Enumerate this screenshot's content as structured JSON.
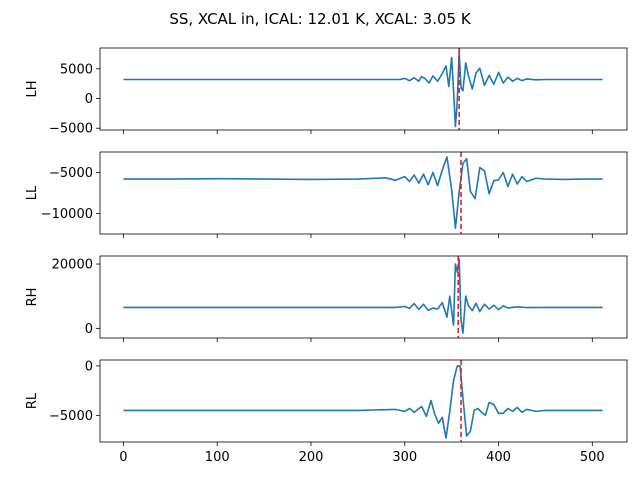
{
  "figure": {
    "title": "SS, XCAL in, ICAL: 12.01 K, XCAL: 3.05 K"
  },
  "chart_data": [
    {
      "type": "line",
      "ylabel": "LH",
      "xlim": [
        -25,
        537
      ],
      "ylim": [
        -5300,
        8500
      ],
      "yticks": [
        -5000,
        0,
        5000
      ],
      "xticks": [
        0,
        100,
        200,
        300,
        400,
        500
      ],
      "show_xtick_labels": false,
      "baseline": 3200,
      "marker_x": 358,
      "series": [
        {
          "color": "#1f77b4",
          "x": [
            0,
            295,
            300,
            305,
            310,
            315,
            318,
            322,
            326,
            330,
            335,
            340,
            344,
            347,
            350,
            352,
            354,
            356,
            358,
            360,
            362,
            365,
            368,
            372,
            376,
            380,
            385,
            390,
            395,
            400,
            405,
            410,
            415,
            420,
            425,
            430,
            440,
            450,
            511
          ],
          "y": [
            3200,
            3200,
            3400,
            3000,
            3500,
            2900,
            3700,
            3300,
            2600,
            3800,
            2900,
            4200,
            5500,
            2000,
            6900,
            1500,
            -4700,
            -500,
            7800,
            1800,
            1300,
            6000,
            3800,
            1600,
            4300,
            5100,
            2200,
            3900,
            2400,
            4400,
            2600,
            3600,
            2900,
            3400,
            3000,
            3300,
            3150,
            3200,
            3200
          ]
        }
      ]
    },
    {
      "type": "line",
      "ylabel": "LL",
      "xlim": [
        -25,
        537
      ],
      "ylim": [
        -12500,
        -2500
      ],
      "yticks": [
        -10000,
        -5000
      ],
      "xticks": [
        0,
        100,
        200,
        300,
        400,
        500
      ],
      "show_xtick_labels": false,
      "baseline": -5800,
      "marker_x": 360,
      "series": [
        {
          "color": "#1f77b4",
          "x": [
            0,
            50,
            100,
            150,
            200,
            250,
            280,
            290,
            300,
            305,
            310,
            315,
            320,
            325,
            330,
            335,
            340,
            345,
            350,
            354,
            358,
            362,
            366,
            370,
            375,
            380,
            385,
            390,
            395,
            400,
            405,
            410,
            415,
            420,
            425,
            430,
            440,
            450,
            470,
            490,
            511
          ],
          "y": [
            -5800,
            -5800,
            -5750,
            -5800,
            -5850,
            -5800,
            -5650,
            -5950,
            -5500,
            -6100,
            -5300,
            -6300,
            -5200,
            -6500,
            -5000,
            -6600,
            -4700,
            -3100,
            -7100,
            -11800,
            -7400,
            -3900,
            -3300,
            -7300,
            -8200,
            -4400,
            -4800,
            -7600,
            -6000,
            -5900,
            -5000,
            -6700,
            -5200,
            -6400,
            -5500,
            -6100,
            -5700,
            -5800,
            -5850,
            -5800,
            -5800
          ]
        }
      ]
    },
    {
      "type": "line",
      "ylabel": "RH",
      "xlim": [
        -25,
        537
      ],
      "ylim": [
        -3000,
        22500
      ],
      "yticks": [
        0,
        20000
      ],
      "xticks": [
        0,
        100,
        200,
        300,
        400,
        500
      ],
      "show_xtick_labels": false,
      "baseline": 6500,
      "marker_x": 357,
      "series": [
        {
          "color": "#1f77b4",
          "x": [
            0,
            290,
            300,
            305,
            310,
            315,
            320,
            325,
            330,
            335,
            340,
            345,
            348,
            350,
            352,
            354,
            356,
            358,
            360,
            362,
            365,
            368,
            372,
            376,
            380,
            385,
            390,
            395,
            400,
            405,
            410,
            420,
            430,
            450,
            511
          ],
          "y": [
            6500,
            6500,
            6800,
            6200,
            7700,
            5900,
            7500,
            5600,
            6300,
            6000,
            8000,
            3500,
            10000,
            5500,
            1000,
            20000,
            17500,
            21500,
            2500,
            -1500,
            10000,
            7000,
            5500,
            7800,
            5200,
            7500,
            6000,
            7200,
            5800,
            7000,
            6300,
            6700,
            6450,
            6500,
            6500
          ]
        }
      ]
    },
    {
      "type": "line",
      "ylabel": "RL",
      "xlim": [
        -25,
        537
      ],
      "ylim": [
        -7700,
        600
      ],
      "yticks": [
        -5000,
        0
      ],
      "xticks": [
        0,
        100,
        200,
        300,
        400,
        500
      ],
      "show_xtick_labels": true,
      "baseline": -4500,
      "marker_x": 360,
      "series": [
        {
          "color": "#1f77b4",
          "x": [
            0,
            100,
            200,
            250,
            290,
            300,
            305,
            310,
            318,
            323,
            328,
            332,
            336,
            340,
            344,
            348,
            352,
            356,
            359,
            362,
            366,
            370,
            374,
            378,
            382,
            386,
            390,
            395,
            400,
            405,
            410,
            415,
            420,
            425,
            430,
            440,
            450,
            470,
            511
          ],
          "y": [
            -4500,
            -4500,
            -4500,
            -4500,
            -4400,
            -4600,
            -4300,
            -4700,
            -4100,
            -5100,
            -3500,
            -4900,
            -5800,
            -5200,
            -7300,
            -4600,
            -1500,
            0,
            0,
            -3200,
            -7100,
            -6600,
            -4500,
            -4300,
            -4700,
            -5000,
            -3700,
            -3900,
            -4800,
            -4800,
            -4300,
            -4600,
            -4200,
            -4700,
            -4400,
            -4600,
            -4500,
            -4500,
            -4500
          ]
        }
      ]
    }
  ]
}
